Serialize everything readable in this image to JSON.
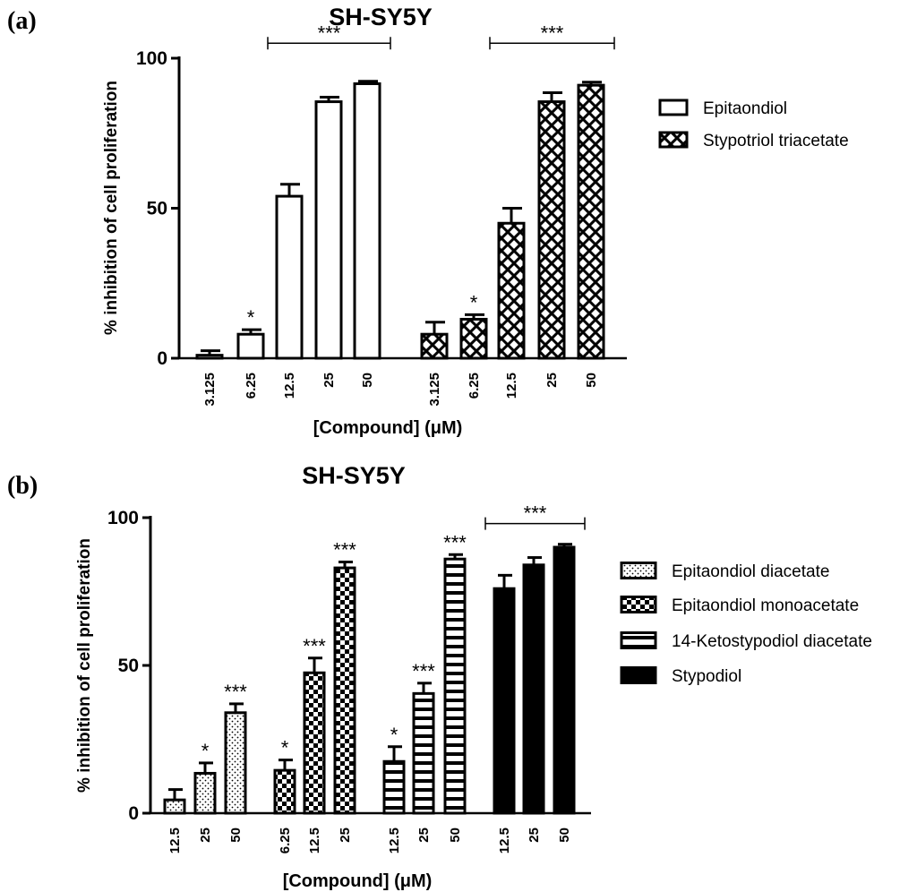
{
  "chart_data": [
    {
      "panel": "(a)",
      "type": "bar",
      "title": "SH-SY5Y",
      "xlabel": "[Compound] (μM)",
      "ylabel": "% inhibition of cell proliferation",
      "ylim": [
        0,
        100
      ],
      "yticks": [
        "0",
        "50",
        "100"
      ],
      "legend_position": "right",
      "series": [
        {
          "name": "Epitaondiol",
          "pattern": "open",
          "categories": [
            "3.125",
            "6.25",
            "12.5",
            "25",
            "50"
          ],
          "values": [
            1,
            8,
            54,
            85.5,
            91.5
          ],
          "errors": [
            1.5,
            1.5,
            4,
            1.5,
            0.8
          ],
          "annotations": [
            "",
            "*",
            "",
            "",
            ""
          ]
        },
        {
          "name": "Stypotriol triacetate",
          "pattern": "crosshatch",
          "categories": [
            "3.125",
            "6.25",
            "12.5",
            "25",
            "50"
          ],
          "values": [
            8,
            13,
            45,
            85.5,
            91
          ],
          "errors": [
            4,
            1.5,
            5,
            3,
            1
          ],
          "annotations": [
            "",
            "*",
            "",
            "",
            ""
          ]
        }
      ],
      "brackets": [
        {
          "series": 0,
          "from": 2,
          "to": 4,
          "label": "***",
          "y": 105
        },
        {
          "series": 1,
          "from": 2,
          "to": 4,
          "label": "***",
          "y": 105
        }
      ]
    },
    {
      "panel": "(b)",
      "type": "bar",
      "title": "SH-SY5Y",
      "xlabel": "[Compound] (μM)",
      "ylabel": "% inhibition of cell proliferation",
      "ylim": [
        0,
        100
      ],
      "yticks": [
        "0",
        "50",
        "100"
      ],
      "legend_position": "right",
      "series": [
        {
          "name": "Epitaondiol diacetate",
          "pattern": "dots",
          "categories": [
            "12.5",
            "25",
            "50"
          ],
          "values": [
            4.5,
            13.5,
            34
          ],
          "errors": [
            3.5,
            3.5,
            3
          ],
          "annotations": [
            "",
            "*",
            "***"
          ]
        },
        {
          "name": "Epitaondiol monoacetate",
          "pattern": "checker",
          "categories": [
            "6.25",
            "12.5",
            "25"
          ],
          "values": [
            14.5,
            47.5,
            83
          ],
          "errors": [
            3.5,
            5,
            2
          ],
          "annotations": [
            "*",
            "***",
            "***"
          ]
        },
        {
          "name": "14-Ketostypodiol diacetate",
          "pattern": "hstripes",
          "categories": [
            "12.5",
            "25",
            "50"
          ],
          "values": [
            17.5,
            40.5,
            86
          ],
          "errors": [
            5,
            3.5,
            1.5
          ],
          "annotations": [
            "*",
            "***",
            "***"
          ]
        },
        {
          "name": "Stypodiol",
          "pattern": "solid",
          "categories": [
            "12.5",
            "25",
            "50"
          ],
          "values": [
            76,
            84,
            90
          ],
          "errors": [
            4.5,
            2.5,
            1
          ],
          "annotations": [
            "",
            "",
            ""
          ]
        }
      ],
      "brackets": [
        {
          "series": 3,
          "from": 0,
          "to": 2,
          "label": "***",
          "y": 98
        }
      ]
    }
  ]
}
